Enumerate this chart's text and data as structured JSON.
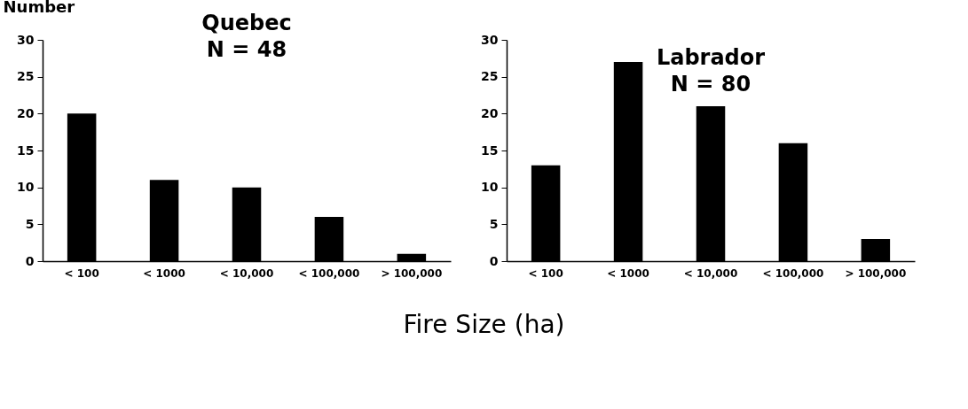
{
  "chart_data": [
    {
      "type": "bar",
      "title": "Quebec",
      "subtitle": "N = 48",
      "ylabel": "Number",
      "xlabel": "Fire Size (ha)",
      "categories": [
        "< 100",
        "< 1000",
        "< 10,000",
        "< 100,000",
        "> 100,000"
      ],
      "values": [
        20,
        11,
        10,
        6,
        1
      ],
      "color": "#000000",
      "ylim": [
        0,
        30
      ],
      "yticks": [
        0,
        5,
        10,
        15,
        20,
        25,
        30
      ],
      "grid": false
    },
    {
      "type": "bar",
      "title": "Labrador",
      "subtitle": "N = 80",
      "categories": [
        "< 100",
        "< 1000",
        "< 10,000",
        "< 100,000",
        "> 100,000"
      ],
      "values": [
        13,
        27,
        21,
        16,
        3
      ],
      "color": "#000000",
      "ylim": [
        0,
        30
      ],
      "yticks": [
        0,
        5,
        10,
        15,
        20,
        25,
        30
      ],
      "grid": false
    }
  ]
}
